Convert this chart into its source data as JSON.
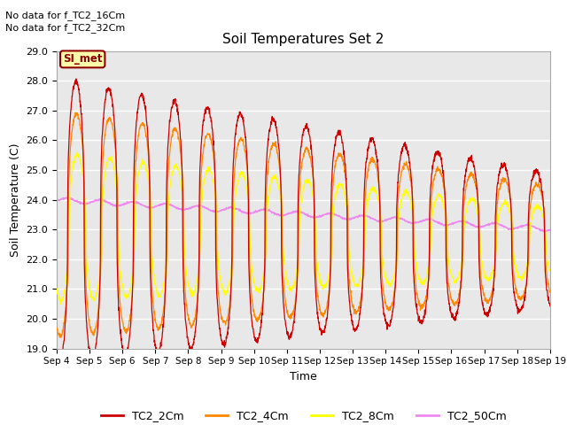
{
  "title": "Soil Temperatures Set 2",
  "xlabel": "Time",
  "ylabel": "Soil Temperature (C)",
  "ylim": [
    19.0,
    29.0
  ],
  "yticks": [
    19.0,
    20.0,
    21.0,
    22.0,
    23.0,
    24.0,
    25.0,
    26.0,
    27.0,
    28.0,
    29.0
  ],
  "xtick_labels": [
    "Sep 4",
    "Sep 5",
    "Sep 6",
    "Sep 7",
    "Sep 8",
    "Sep 9",
    "Sep 10",
    "Sep 11",
    "Sep 12",
    "Sep 13",
    "Sep 14",
    "Sep 15",
    "Sep 16",
    "Sep 17",
    "Sep 18",
    "Sep 19"
  ],
  "annotations": [
    "No data for f_TC2_16Cm",
    "No data for f_TC2_32Cm"
  ],
  "legend_label": "SI_met",
  "legend_entries": [
    "TC2_2Cm",
    "TC2_4Cm",
    "TC2_8Cm",
    "TC2_50Cm"
  ],
  "line_colors": [
    "#cc0000",
    "#ff8800",
    "#ffff00",
    "#ee88ee"
  ],
  "plot_bg": "#e8e8e8",
  "fig_bg": "#ffffff",
  "grid_color": "#ffffff",
  "num_days": 15
}
